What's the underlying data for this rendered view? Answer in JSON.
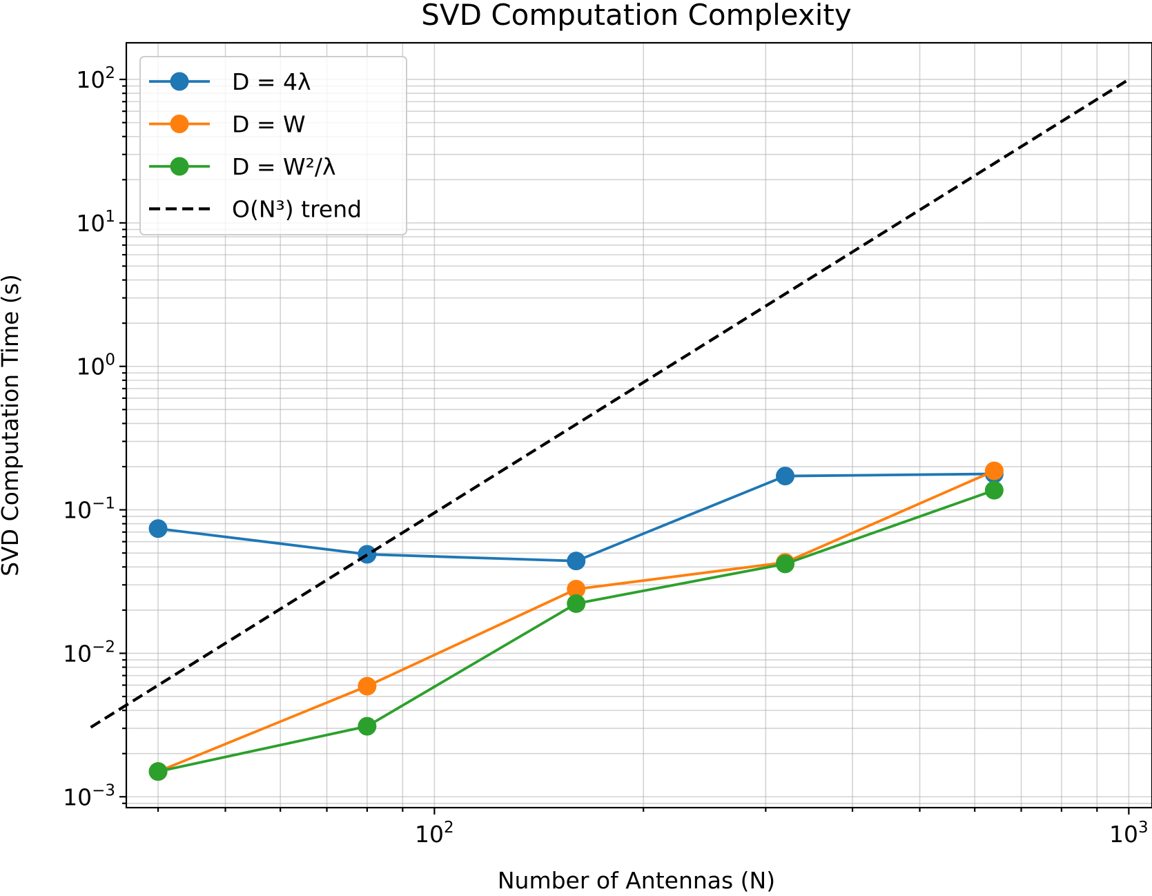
{
  "chart_data": {
    "type": "line",
    "title": "SVD Computation Complexity",
    "xlabel": "Number of Antennas (N)",
    "ylabel": "SVD Computation Time (s)",
    "xscale": "log",
    "yscale": "log",
    "xlim": [
      36,
      1080
    ],
    "ylim": [
      0.00084,
      180
    ],
    "grid": "both",
    "legend_position": "upper left",
    "x_ticks": [
      {
        "value": 100,
        "base": "10",
        "exp": "2"
      },
      {
        "value": 1000,
        "base": "10",
        "exp": "3"
      }
    ],
    "y_ticks": [
      {
        "value": 0.001,
        "base": "10",
        "exp": "−3"
      },
      {
        "value": 0.01,
        "base": "10",
        "exp": "−2"
      },
      {
        "value": 0.1,
        "base": "10",
        "exp": "−1"
      },
      {
        "value": 1,
        "base": "10",
        "exp": "0"
      },
      {
        "value": 10,
        "base": "10",
        "exp": "1"
      },
      {
        "value": 100,
        "base": "10",
        "exp": "2"
      }
    ],
    "series": [
      {
        "name": "D = 4λ",
        "color": "#1f77b4",
        "style": "solid-marker",
        "x": [
          40,
          80,
          160,
          320,
          640
        ],
        "y": [
          0.074,
          0.049,
          0.044,
          0.172,
          0.178
        ]
      },
      {
        "name": "D = W",
        "color": "#ff7f0e",
        "style": "solid-marker",
        "x": [
          40,
          80,
          160,
          320,
          640
        ],
        "y": [
          0.0015,
          0.0059,
          0.028,
          0.043,
          0.187
        ]
      },
      {
        "name": "D = W²/λ",
        "color": "#2ca02c",
        "style": "solid-marker",
        "x": [
          40,
          80,
          160,
          320,
          640
        ],
        "y": [
          0.0015,
          0.0031,
          0.0222,
          0.042,
          0.137
        ]
      },
      {
        "name": "O(N³) trend",
        "color": "#000000",
        "style": "dashed",
        "x": [
          32,
          1000
        ],
        "y": [
          0.00305,
          100
        ]
      }
    ]
  }
}
